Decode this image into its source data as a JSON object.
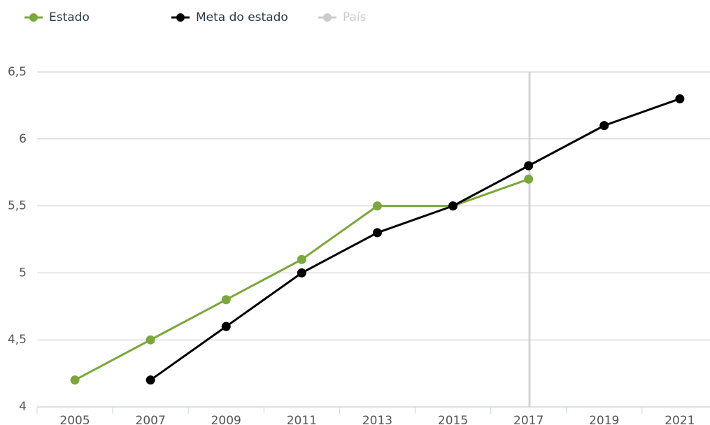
{
  "chart_data": {
    "type": "line",
    "categories": [
      "2005",
      "2007",
      "2009",
      "2011",
      "2013",
      "2015",
      "2017",
      "2019",
      "2021"
    ],
    "series": [
      {
        "name": "Estado",
        "color": "#7aa83a",
        "values": [
          4.2,
          4.5,
          4.8,
          5.1,
          5.5,
          5.5,
          5.7,
          null,
          null
        ]
      },
      {
        "name": "Meta do estado",
        "color": "#000000",
        "values": [
          null,
          4.2,
          4.6,
          5.0,
          5.3,
          5.5,
          5.8,
          6.1,
          6.3
        ]
      },
      {
        "name": "País",
        "color": "#cccccc",
        "hidden": true,
        "values": [
          null,
          null,
          null,
          null,
          null,
          null,
          null,
          null,
          null
        ]
      }
    ],
    "ylim": [
      4,
      6.5
    ],
    "yticks": [
      4,
      {
        "value": 4.5,
        "label": "4,5"
      },
      5,
      {
        "value": 5.5,
        "label": "5,5"
      },
      6,
      {
        "value": 6.5,
        "label": "6,5"
      }
    ],
    "grid": true,
    "legend": "top"
  }
}
